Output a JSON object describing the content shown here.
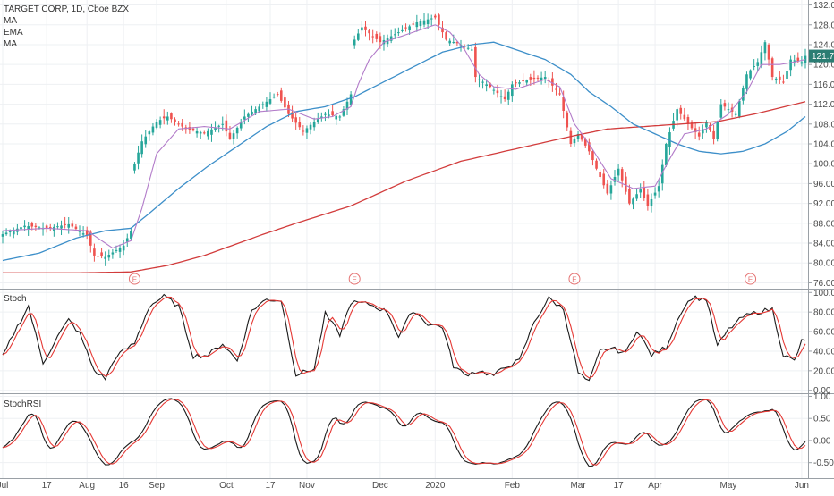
{
  "header": {
    "title": "TARGET CORP, 1D, Cboe BZX",
    "indicators": [
      "MA",
      "EMA",
      "MA"
    ]
  },
  "colors": {
    "up": "#26a69a",
    "down": "#ef5350",
    "ma_fast": "#b27bc9",
    "ma_mid": "#3d8fc9",
    "ma_slow": "#d23c3c",
    "stoch_k": "#1a1a1a",
    "stoch_d": "#e53935",
    "price_tag": "#2a7d73",
    "earnings": "#e57373"
  },
  "price_pane": {
    "ylim": [
      75,
      133
    ],
    "ticks": [
      "76.00",
      "80.00",
      "84.00",
      "88.00",
      "92.00",
      "96.00",
      "100.00",
      "104.00",
      "108.00",
      "112.00",
      "116.00",
      "120.00",
      "124.00",
      "128.00",
      "132.00"
    ],
    "last_price_label": "121.73",
    "last_price": 121.73,
    "earnings_marker": "E",
    "earnings_bar_index": [
      36,
      96,
      156,
      204
    ]
  },
  "stoch_pane": {
    "label": "Stoch",
    "ylim": [
      -3,
      103
    ],
    "ticks": [
      "0.00",
      "20.00",
      "40.00",
      "60.00",
      "80.00",
      "100.00"
    ]
  },
  "stochrsi_pane": {
    "label": "StochRSI",
    "ylim": [
      -0.85,
      1.05
    ],
    "ticks": [
      "-0.50",
      "0.00",
      "0.50",
      "1.00"
    ]
  },
  "x_axis": {
    "labels": [
      {
        "text": "Jul",
        "bar": 0
      },
      {
        "text": "17",
        "bar": 12
      },
      {
        "text": "Aug",
        "bar": 23
      },
      {
        "text": "16",
        "bar": 33
      },
      {
        "text": "Sep",
        "bar": 42
      },
      {
        "text": "Oct",
        "bar": 61
      },
      {
        "text": "17",
        "bar": 73
      },
      {
        "text": "Nov",
        "bar": 83
      },
      {
        "text": "Dec",
        "bar": 103
      },
      {
        "text": "2020",
        "bar": 118
      },
      {
        "text": "Feb",
        "bar": 139
      },
      {
        "text": "Mar",
        "bar": 157
      },
      {
        "text": "17",
        "bar": 168
      },
      {
        "text": "Apr",
        "bar": 178
      },
      {
        "text": "May",
        "bar": 198
      },
      {
        "text": "Jun",
        "bar": 218
      }
    ]
  },
  "chart_data": {
    "type": "line",
    "description_series": [
      "close",
      "ma_fast",
      "ma_mid",
      "ma_slow",
      "stoch_k",
      "stoch_d",
      "stochrsi_k",
      "stochrsi_d"
    ],
    "close_keypoints": [
      [
        0,
        85.8
      ],
      [
        6,
        87.5
      ],
      [
        12,
        87.0
      ],
      [
        18,
        87.8
      ],
      [
        23,
        85.5
      ],
      [
        25,
        81.5
      ],
      [
        28,
        81.2
      ],
      [
        33,
        83.5
      ],
      [
        35,
        86.5
      ],
      [
        36,
        100
      ],
      [
        38,
        104.5
      ],
      [
        42,
        108.5
      ],
      [
        45,
        109.5
      ],
      [
        50,
        107
      ],
      [
        55,
        106.2
      ],
      [
        60,
        108
      ],
      [
        62,
        105
      ],
      [
        66,
        109.5
      ],
      [
        72,
        112.5
      ],
      [
        75,
        114
      ],
      [
        78,
        110
      ],
      [
        82,
        106.5
      ],
      [
        85,
        108.5
      ],
      [
        88,
        110
      ],
      [
        92,
        109.5
      ],
      [
        95,
        114
      ],
      [
        96,
        125
      ],
      [
        98,
        127.5
      ],
      [
        103,
        124.5
      ],
      [
        108,
        126.5
      ],
      [
        113,
        128.5
      ],
      [
        118,
        129.5
      ],
      [
        121,
        125
      ],
      [
        124,
        124.3
      ],
      [
        128,
        123
      ],
      [
        129,
        117.5
      ],
      [
        133,
        115.5
      ],
      [
        137,
        113
      ],
      [
        139,
        116
      ],
      [
        144,
        117
      ],
      [
        148,
        117.5
      ],
      [
        152,
        114
      ],
      [
        155,
        104
      ],
      [
        157,
        106
      ],
      [
        160,
        102.5
      ],
      [
        162,
        99
      ],
      [
        165,
        94
      ],
      [
        168,
        99
      ],
      [
        171,
        92
      ],
      [
        174,
        94.8
      ],
      [
        176,
        91.5
      ],
      [
        179,
        95.5
      ],
      [
        181,
        104
      ],
      [
        184,
        111
      ],
      [
        187,
        108
      ],
      [
        190,
        105.5
      ],
      [
        192,
        108.5
      ],
      [
        194,
        105
      ],
      [
        196,
        112
      ],
      [
        200,
        110
      ],
      [
        203,
        118
      ],
      [
        206,
        120.5
      ],
      [
        208,
        124.5
      ],
      [
        210,
        117.5
      ],
      [
        213,
        116.5
      ],
      [
        215,
        121
      ],
      [
        218,
        120.5
      ],
      [
        219,
        121.73
      ]
    ],
    "ma_fast_keypoints": [
      [
        0,
        86.5
      ],
      [
        12,
        87
      ],
      [
        23,
        86.5
      ],
      [
        30,
        83
      ],
      [
        35,
        84.5
      ],
      [
        38,
        91
      ],
      [
        42,
        102
      ],
      [
        48,
        107
      ],
      [
        55,
        107.5
      ],
      [
        62,
        107
      ],
      [
        70,
        110.5
      ],
      [
        78,
        111
      ],
      [
        85,
        109
      ],
      [
        90,
        109.5
      ],
      [
        95,
        111.5
      ],
      [
        97,
        116
      ],
      [
        100,
        121
      ],
      [
        104,
        124.5
      ],
      [
        110,
        126
      ],
      [
        118,
        128
      ],
      [
        122,
        126.5
      ],
      [
        126,
        123
      ],
      [
        130,
        118
      ],
      [
        134,
        115.5
      ],
      [
        140,
        115
      ],
      [
        148,
        117
      ],
      [
        152,
        115.5
      ],
      [
        156,
        108
      ],
      [
        160,
        104
      ],
      [
        166,
        97
      ],
      [
        172,
        95
      ],
      [
        178,
        95.5
      ],
      [
        182,
        101
      ],
      [
        186,
        106
      ],
      [
        192,
        107
      ],
      [
        198,
        110
      ],
      [
        203,
        114.5
      ],
      [
        207,
        120
      ],
      [
        212,
        120
      ],
      [
        216,
        120.5
      ],
      [
        219,
        121
      ]
    ],
    "ma_mid_keypoints": [
      [
        0,
        80.5
      ],
      [
        10,
        82
      ],
      [
        20,
        85
      ],
      [
        28,
        86.5
      ],
      [
        35,
        87
      ],
      [
        40,
        90
      ],
      [
        48,
        95
      ],
      [
        56,
        99.5
      ],
      [
        64,
        103.5
      ],
      [
        72,
        107.5
      ],
      [
        80,
        110.5
      ],
      [
        88,
        111.5
      ],
      [
        96,
        113.5
      ],
      [
        104,
        116.5
      ],
      [
        112,
        119.5
      ],
      [
        120,
        122.5
      ],
      [
        128,
        124
      ],
      [
        134,
        124.5
      ],
      [
        140,
        123
      ],
      [
        148,
        121
      ],
      [
        155,
        118
      ],
      [
        160,
        114.5
      ],
      [
        166,
        111.5
      ],
      [
        172,
        108
      ],
      [
        178,
        106
      ],
      [
        184,
        104
      ],
      [
        190,
        102.5
      ],
      [
        196,
        102
      ],
      [
        202,
        102.5
      ],
      [
        208,
        104
      ],
      [
        214,
        106.5
      ],
      [
        219,
        109.5
      ]
    ],
    "ma_slow_keypoints": [
      [
        0,
        78
      ],
      [
        20,
        78
      ],
      [
        35,
        78.2
      ],
      [
        45,
        79.5
      ],
      [
        55,
        81.5
      ],
      [
        70,
        85.5
      ],
      [
        80,
        88
      ],
      [
        95,
        91.5
      ],
      [
        110,
        96.5
      ],
      [
        125,
        100.5
      ],
      [
        140,
        103
      ],
      [
        155,
        105.5
      ],
      [
        165,
        107
      ],
      [
        175,
        107.5
      ],
      [
        185,
        108
      ],
      [
        195,
        108.5
      ],
      [
        205,
        110
      ],
      [
        219,
        112.5
      ]
    ],
    "stoch_k_keypoints": [
      [
        0,
        34
      ],
      [
        3,
        58
      ],
      [
        7,
        86
      ],
      [
        11,
        28
      ],
      [
        15,
        55
      ],
      [
        18,
        72
      ],
      [
        21,
        58
      ],
      [
        25,
        20
      ],
      [
        28,
        12
      ],
      [
        31,
        35
      ],
      [
        36,
        48
      ],
      [
        40,
        86
      ],
      [
        44,
        96
      ],
      [
        48,
        86
      ],
      [
        52,
        35
      ],
      [
        56,
        36
      ],
      [
        60,
        48
      ],
      [
        64,
        30
      ],
      [
        68,
        82
      ],
      [
        72,
        93
      ],
      [
        76,
        92
      ],
      [
        80,
        16
      ],
      [
        85,
        22
      ],
      [
        88,
        78
      ],
      [
        92,
        57
      ],
      [
        95,
        90
      ],
      [
        100,
        88
      ],
      [
        105,
        80
      ],
      [
        108,
        55
      ],
      [
        112,
        82
      ],
      [
        116,
        68
      ],
      [
        120,
        65
      ],
      [
        123,
        25
      ],
      [
        126,
        16
      ],
      [
        130,
        20
      ],
      [
        134,
        15
      ],
      [
        138,
        26
      ],
      [
        141,
        30
      ],
      [
        145,
        70
      ],
      [
        149,
        94
      ],
      [
        153,
        83
      ],
      [
        157,
        18
      ],
      [
        160,
        8
      ],
      [
        163,
        40
      ],
      [
        166,
        43
      ],
      [
        170,
        38
      ],
      [
        173,
        62
      ],
      [
        177,
        36
      ],
      [
        181,
        44
      ],
      [
        185,
        80
      ],
      [
        188,
        95
      ],
      [
        192,
        93
      ],
      [
        195,
        45
      ],
      [
        198,
        62
      ],
      [
        202,
        75
      ],
      [
        206,
        80
      ],
      [
        210,
        83
      ],
      [
        213,
        36
      ],
      [
        216,
        30
      ],
      [
        218,
        50
      ],
      [
        220,
        50
      ]
    ]
  }
}
